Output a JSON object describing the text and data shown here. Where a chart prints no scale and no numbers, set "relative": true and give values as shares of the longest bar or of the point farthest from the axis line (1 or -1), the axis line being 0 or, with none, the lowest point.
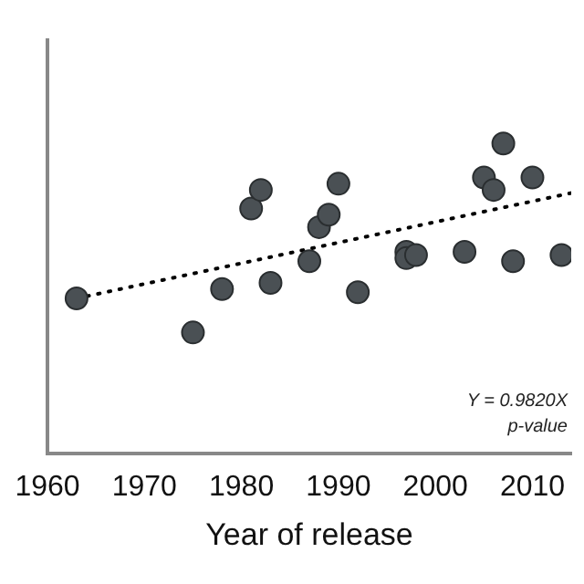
{
  "chart_data": {
    "type": "scatter",
    "xlabel": "Year of release",
    "relative": true,
    "xlim": [
      1960,
      2014
    ],
    "xticks": [
      1960,
      1970,
      1980,
      1990,
      2000,
      2010
    ],
    "grid": false,
    "legend": false,
    "annotations": [
      "Y = 0.9820X",
      "p-value"
    ],
    "series": [
      {
        "color": "#4a5054",
        "marker": "circle",
        "x": [
          1963,
          1975,
          1978,
          1981,
          1982,
          1983,
          1987,
          1988,
          1989,
          1990,
          1992,
          1997,
          1997,
          1998,
          2003,
          2005,
          2006,
          2007,
          2008,
          2010,
          2013
        ],
        "values": [
          0.5,
          0.39,
          0.53,
          0.79,
          0.85,
          0.55,
          0.62,
          0.73,
          0.77,
          0.87,
          0.52,
          0.65,
          0.63,
          0.64,
          0.65,
          0.89,
          0.85,
          1,
          0.62,
          0.89,
          0.64
        ]
      },
      {
        "type": "line",
        "color": "#000000",
        "line_style": "dotted",
        "x": [
          1963,
          2014
        ],
        "values": [
          0.5,
          0.84
        ]
      }
    ]
  }
}
